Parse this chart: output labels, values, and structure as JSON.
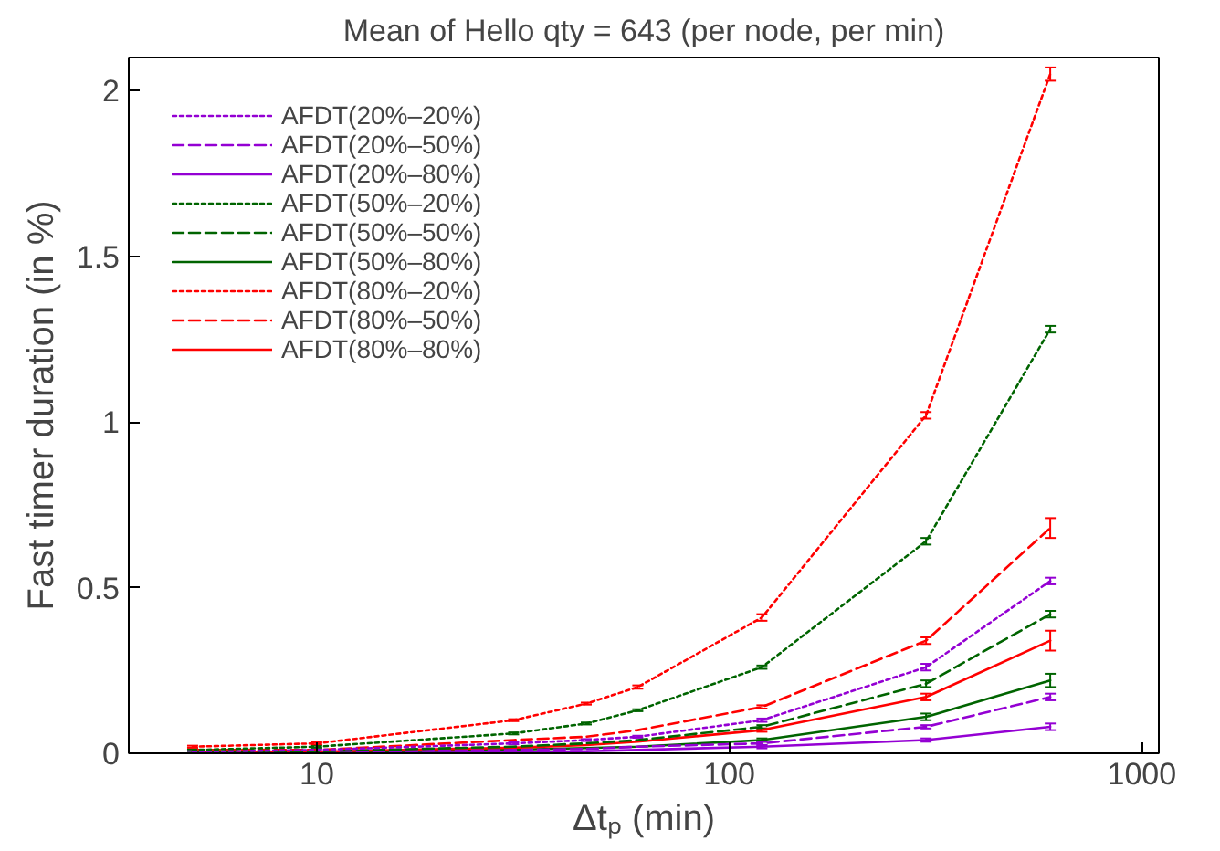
{
  "chart_data": {
    "type": "line",
    "title": "Mean of Hello qty = 643 (per node, per min)",
    "xlabel": "Δtₚ (min)",
    "ylabel": "Fast timer duration (in %)",
    "x": [
      5,
      10,
      30,
      45,
      60,
      120,
      300,
      600
    ],
    "log": "x",
    "xlim": [
      3.5,
      1100
    ],
    "xticks": [
      10,
      100,
      1000
    ],
    "ylim": [
      0,
      2.1
    ],
    "yticks": [
      0,
      0.5,
      1,
      1.5,
      2
    ],
    "grid": false,
    "legend": "top left",
    "marker": "none",
    "series": [
      {
        "name": "AFDT(20%–20%)",
        "color": "#9400d3",
        "line_style": "dotted",
        "values": [
          0.005,
          0.01,
          0.03,
          0.04,
          0.05,
          0.1,
          0.26,
          0.52
        ],
        "errors": [
          0.003,
          0.003,
          0.003,
          0.003,
          0.003,
          0.005,
          0.01,
          0.01
        ]
      },
      {
        "name": "AFDT(20%–50%)",
        "color": "#9400d3",
        "line_style": "dashed",
        "values": [
          0.002,
          0.003,
          0.01,
          0.013,
          0.02,
          0.03,
          0.08,
          0.17
        ],
        "errors": [
          null,
          null,
          null,
          null,
          null,
          0.005,
          0.005,
          0.01
        ]
      },
      {
        "name": "AFDT(20%–80%)",
        "color": "#9400d3",
        "line_style": "solid",
        "values": [
          0.001,
          0.002,
          0.004,
          0.006,
          0.01,
          0.02,
          0.04,
          0.08
        ],
        "errors": [
          null,
          null,
          null,
          null,
          null,
          0.005,
          0.005,
          0.01
        ]
      },
      {
        "name": "AFDT(50%–20%)",
        "color": "#006400",
        "line_style": "dotted",
        "values": [
          0.01,
          0.02,
          0.06,
          0.09,
          0.13,
          0.26,
          0.64,
          1.28
        ],
        "errors": [
          0.003,
          0.003,
          0.003,
          0.003,
          0.003,
          0.005,
          0.01,
          0.01
        ]
      },
      {
        "name": "AFDT(50%–50%)",
        "color": "#006400",
        "line_style": "dashed",
        "values": [
          0.003,
          0.006,
          0.02,
          0.03,
          0.04,
          0.08,
          0.21,
          0.42
        ],
        "errors": [
          null,
          null,
          null,
          null,
          null,
          0.005,
          0.01,
          0.01
        ]
      },
      {
        "name": "AFDT(50%–80%)",
        "color": "#006400",
        "line_style": "solid",
        "values": [
          0.002,
          0.004,
          0.011,
          0.016,
          0.02,
          0.04,
          0.11,
          0.22
        ],
        "errors": [
          null,
          null,
          null,
          null,
          null,
          0.005,
          0.01,
          0.02
        ]
      },
      {
        "name": "AFDT(80%–20%)",
        "color": "#ff0000",
        "line_style": "dotted",
        "values": [
          0.02,
          0.03,
          0.1,
          0.15,
          0.2,
          0.41,
          1.02,
          2.05
        ],
        "errors": [
          0.003,
          0.003,
          0.003,
          0.003,
          0.005,
          0.01,
          0.01,
          0.02
        ]
      },
      {
        "name": "AFDT(80%–50%)",
        "color": "#ff0000",
        "line_style": "dashed",
        "values": [
          0.01,
          0.01,
          0.04,
          0.05,
          0.07,
          0.14,
          0.34,
          0.68
        ],
        "errors": [
          null,
          null,
          null,
          null,
          null,
          0.005,
          0.01,
          0.03
        ]
      },
      {
        "name": "AFDT(80%–80%)",
        "color": "#ff0000",
        "line_style": "solid",
        "values": [
          0.003,
          0.005,
          0.017,
          0.025,
          0.035,
          0.07,
          0.17,
          0.34
        ],
        "errors": [
          null,
          null,
          null,
          null,
          null,
          0.005,
          0.01,
          0.03
        ]
      }
    ]
  }
}
